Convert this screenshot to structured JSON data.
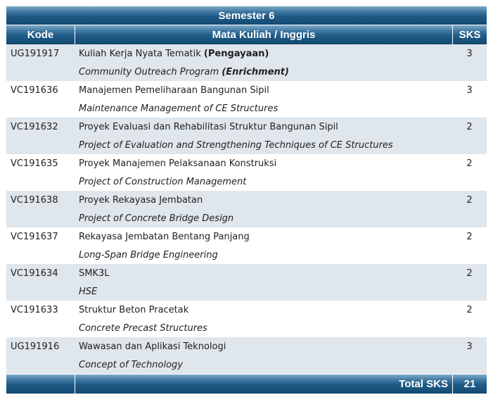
{
  "semester_title": "Semester 6",
  "columns": {
    "kode": "Kode",
    "mata_kuliah": "Mata Kuliah / Inggris",
    "sks": "SKS"
  },
  "courses": [
    {
      "kode": "UG191917",
      "nama": "Kuliah Kerja Nyata Tematik ",
      "nama_bold": "(Pengayaan)",
      "english": "Community Outreach Program ",
      "english_bold": "(Enrichment)",
      "sks": "3"
    },
    {
      "kode": "VC191636",
      "nama": "Manajemen Pemeliharaan Bangunan Sipil",
      "nama_bold": "",
      "english": "Maintenance Management of CE Structures",
      "english_bold": "",
      "sks": "3"
    },
    {
      "kode": "VC191632",
      "nama": "Proyek Evaluasi dan Rehabilitasi Struktur Bangunan Sipil",
      "nama_bold": "",
      "english": "Project of Evaluation and Strengthening Techniques of CE Structures",
      "english_bold": "",
      "sks": "2"
    },
    {
      "kode": "VC191635",
      "nama": "Proyek Manajemen Pelaksanaan Konstruksi",
      "nama_bold": "",
      "english": "Project of Construction Management",
      "english_bold": "",
      "sks": "2"
    },
    {
      "kode": "VC191638",
      "nama": "Proyek Rekayasa Jembatan",
      "nama_bold": "",
      "english": "Project of Concrete Bridge Design",
      "english_bold": "",
      "sks": "2"
    },
    {
      "kode": "VC191637",
      "nama": "Rekayasa Jembatan Bentang Panjang",
      "nama_bold": "",
      "english": "Long-Span Bridge Engineering",
      "english_bold": "",
      "sks": "2"
    },
    {
      "kode": "VC191634",
      "nama": "SMK3L",
      "nama_bold": "",
      "english": "HSE",
      "english_bold": "",
      "sks": "2"
    },
    {
      "kode": "VC191633",
      "nama": "Struktur Beton Pracetak",
      "nama_bold": "",
      "english": "Concrete Precast Structures",
      "english_bold": "",
      "sks": "2"
    },
    {
      "kode": "UG191916",
      "nama": "Wawasan dan Aplikasi Teknologi",
      "nama_bold": "",
      "english": "Concept of Technology",
      "english_bold": "",
      "sks": "3"
    }
  ],
  "footer": {
    "total_label": "Total SKS",
    "total_value": "21"
  }
}
